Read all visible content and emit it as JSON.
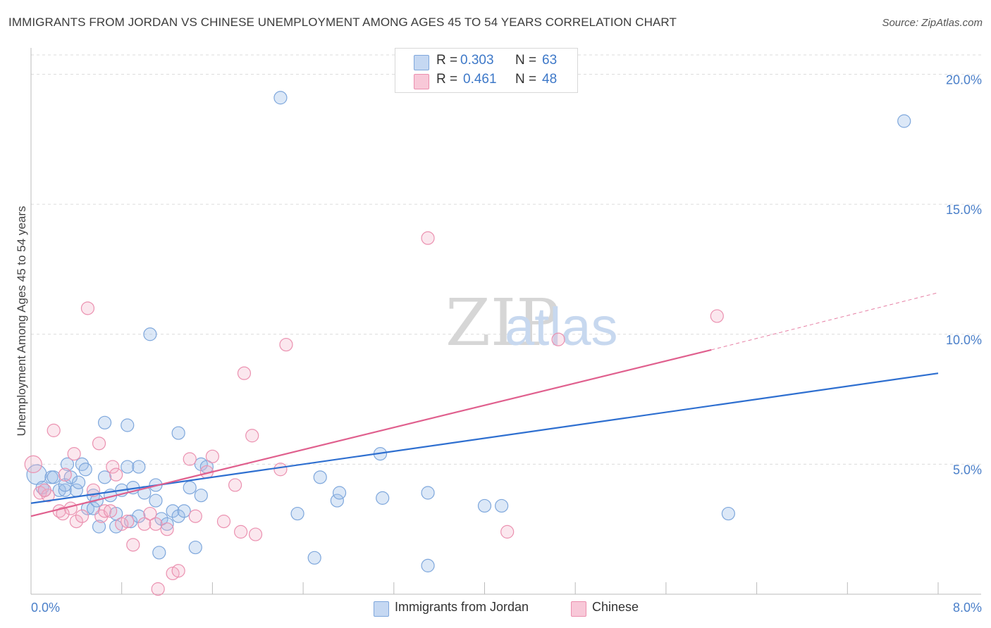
{
  "chart_data": {
    "type": "scatter",
    "title": "IMMIGRANTS FROM JORDAN VS CHINESE UNEMPLOYMENT AMONG AGES 45 TO 54 YEARS CORRELATION CHART",
    "source": "Source: ZipAtlas.com",
    "ylabel": "Unemployment Among Ages 45 to 54 years",
    "xlabel": "",
    "xlim": [
      0,
      8
    ],
    "ylim": [
      0,
      20.8
    ],
    "x_tick_labels": {
      "left": "0.0%",
      "right": "8.0%"
    },
    "y_ticks": [
      {
        "value": 20,
        "label": "20.0%"
      },
      {
        "value": 15,
        "label": "15.0%"
      },
      {
        "value": 10,
        "label": "10.0%"
      },
      {
        "value": 5,
        "label": "5.0%"
      }
    ],
    "watermark": {
      "part1": "ZIP",
      "part2": "atlas"
    },
    "legend": {
      "rows": [
        {
          "r_label": "R =",
          "r_value": "0.303",
          "n_label": "N =",
          "n_value": "63"
        },
        {
          "r_label": "R =",
          "r_value": "0.461",
          "n_label": "N =",
          "n_value": "48"
        }
      ]
    },
    "series": [
      {
        "name": "Immigrants from Jordan",
        "color": "#9bbde8",
        "line_color": "#2e6fd0",
        "trend": {
          "x0": 0,
          "y0": 3.5,
          "x1": 8,
          "y1": 8.5
        },
        "points": [
          [
            0.05,
            4.6
          ],
          [
            0.1,
            4.1
          ],
          [
            0.12,
            4.0
          ],
          [
            0.18,
            4.5
          ],
          [
            0.2,
            4.5
          ],
          [
            0.25,
            4.0
          ],
          [
            0.3,
            4.0
          ],
          [
            0.3,
            4.2
          ],
          [
            0.32,
            5.0
          ],
          [
            0.35,
            4.5
          ],
          [
            0.4,
            4.0
          ],
          [
            0.42,
            4.3
          ],
          [
            0.45,
            5.0
          ],
          [
            0.48,
            4.8
          ],
          [
            0.5,
            3.3
          ],
          [
            0.55,
            3.8
          ],
          [
            0.55,
            3.3
          ],
          [
            0.58,
            3.6
          ],
          [
            0.6,
            2.6
          ],
          [
            0.65,
            6.6
          ],
          [
            0.65,
            4.5
          ],
          [
            0.7,
            3.8
          ],
          [
            0.75,
            3.1
          ],
          [
            0.75,
            2.6
          ],
          [
            0.8,
            4.0
          ],
          [
            0.85,
            6.5
          ],
          [
            0.85,
            4.9
          ],
          [
            0.88,
            2.8
          ],
          [
            0.9,
            4.1
          ],
          [
            0.95,
            4.9
          ],
          [
            0.95,
            3.0
          ],
          [
            1.0,
            3.9
          ],
          [
            1.05,
            10.0
          ],
          [
            1.1,
            3.6
          ],
          [
            1.1,
            4.2
          ],
          [
            1.13,
            1.6
          ],
          [
            1.15,
            2.9
          ],
          [
            1.2,
            2.7
          ],
          [
            1.25,
            3.2
          ],
          [
            1.3,
            3.0
          ],
          [
            1.3,
            6.2
          ],
          [
            1.35,
            3.2
          ],
          [
            1.4,
            4.1
          ],
          [
            1.45,
            1.8
          ],
          [
            1.5,
            3.8
          ],
          [
            1.5,
            5.0
          ],
          [
            1.55,
            4.9
          ],
          [
            2.2,
            19.1
          ],
          [
            2.35,
            3.1
          ],
          [
            2.5,
            1.4
          ],
          [
            2.55,
            4.5
          ],
          [
            2.7,
            3.6
          ],
          [
            2.72,
            3.9
          ],
          [
            3.1,
            3.7
          ],
          [
            3.08,
            5.4
          ],
          [
            3.5,
            1.1
          ],
          [
            3.5,
            3.9
          ],
          [
            4.0,
            3.4
          ],
          [
            4.15,
            3.4
          ],
          [
            6.15,
            3.1
          ],
          [
            7.7,
            18.2
          ]
        ]
      },
      {
        "name": "Chinese",
        "color": "#f3b0c6",
        "line_color": "#e0608e",
        "trend": {
          "x0": 0,
          "y0": 3.0,
          "x1": 6.0,
          "y1": 9.4
        },
        "trend_extension": {
          "x0": 6.0,
          "y0": 9.4,
          "x1": 8.0,
          "y1": 11.6
        },
        "points": [
          [
            0.02,
            5.0
          ],
          [
            0.08,
            3.9
          ],
          [
            0.15,
            3.8
          ],
          [
            0.2,
            6.3
          ],
          [
            0.25,
            3.2
          ],
          [
            0.3,
            4.6
          ],
          [
            0.35,
            3.3
          ],
          [
            0.38,
            5.4
          ],
          [
            0.4,
            2.8
          ],
          [
            0.45,
            3.0
          ],
          [
            0.5,
            11.0
          ],
          [
            0.55,
            4.0
          ],
          [
            0.6,
            5.8
          ],
          [
            0.62,
            3.0
          ],
          [
            0.65,
            3.2
          ],
          [
            0.7,
            3.2
          ],
          [
            0.72,
            4.9
          ],
          [
            0.75,
            4.6
          ],
          [
            0.8,
            2.7
          ],
          [
            0.85,
            2.8
          ],
          [
            0.9,
            1.9
          ],
          [
            1.0,
            2.7
          ],
          [
            1.05,
            3.1
          ],
          [
            1.1,
            2.7
          ],
          [
            1.12,
            0.2
          ],
          [
            1.2,
            2.5
          ],
          [
            1.25,
            0.8
          ],
          [
            1.3,
            0.9
          ],
          [
            1.4,
            5.2
          ],
          [
            1.45,
            3.0
          ],
          [
            1.55,
            4.7
          ],
          [
            1.6,
            5.3
          ],
          [
            1.7,
            2.8
          ],
          [
            1.8,
            4.2
          ],
          [
            1.85,
            2.4
          ],
          [
            1.88,
            8.5
          ],
          [
            1.95,
            6.1
          ],
          [
            1.98,
            2.3
          ],
          [
            2.2,
            4.8
          ],
          [
            2.25,
            9.6
          ],
          [
            3.5,
            13.7
          ],
          [
            4.2,
            2.4
          ],
          [
            4.65,
            9.8
          ],
          [
            6.05,
            10.7
          ],
          [
            0.12,
            4.0
          ],
          [
            0.28,
            3.1
          ]
        ]
      }
    ]
  }
}
